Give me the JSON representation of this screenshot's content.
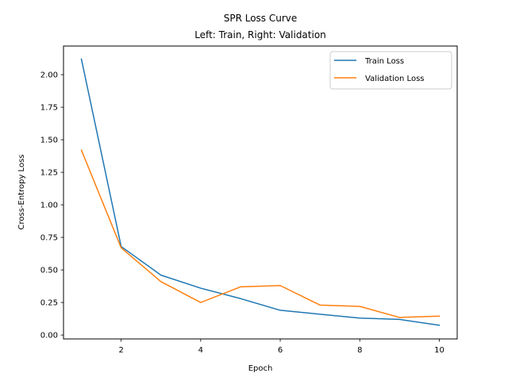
{
  "chart_data": {
    "type": "line",
    "title_lines": [
      "SPR Loss Curve",
      "Left: Train, Right: Validation"
    ],
    "xlabel": "Epoch",
    "ylabel": "Cross-Entropy Loss",
    "xlim": [
      0.55,
      10.45
    ],
    "ylim": [
      -0.03,
      2.22
    ],
    "xticks": [
      2,
      4,
      6,
      8,
      10
    ],
    "xtick_labels": [
      "2",
      "4",
      "6",
      "8",
      "10"
    ],
    "yticks": [
      0.0,
      0.25,
      0.5,
      0.75,
      1.0,
      1.25,
      1.5,
      1.75,
      2.0
    ],
    "ytick_labels": [
      "0.00",
      "0.25",
      "0.50",
      "0.75",
      "1.00",
      "1.25",
      "1.50",
      "1.75",
      "2.00"
    ],
    "grid": false,
    "legend_position": "top-right",
    "x": [
      1,
      2,
      3,
      4,
      5,
      6,
      7,
      8,
      9,
      10
    ],
    "series": [
      {
        "name": "Train Loss",
        "color": "#1f77b4",
        "values": [
          2.12,
          0.68,
          0.46,
          0.36,
          0.28,
          0.19,
          0.16,
          0.13,
          0.12,
          0.075
        ]
      },
      {
        "name": "Validation Loss",
        "color": "#ff7f0e",
        "values": [
          1.42,
          0.67,
          0.41,
          0.25,
          0.37,
          0.38,
          0.23,
          0.22,
          0.135,
          0.145
        ]
      }
    ]
  }
}
